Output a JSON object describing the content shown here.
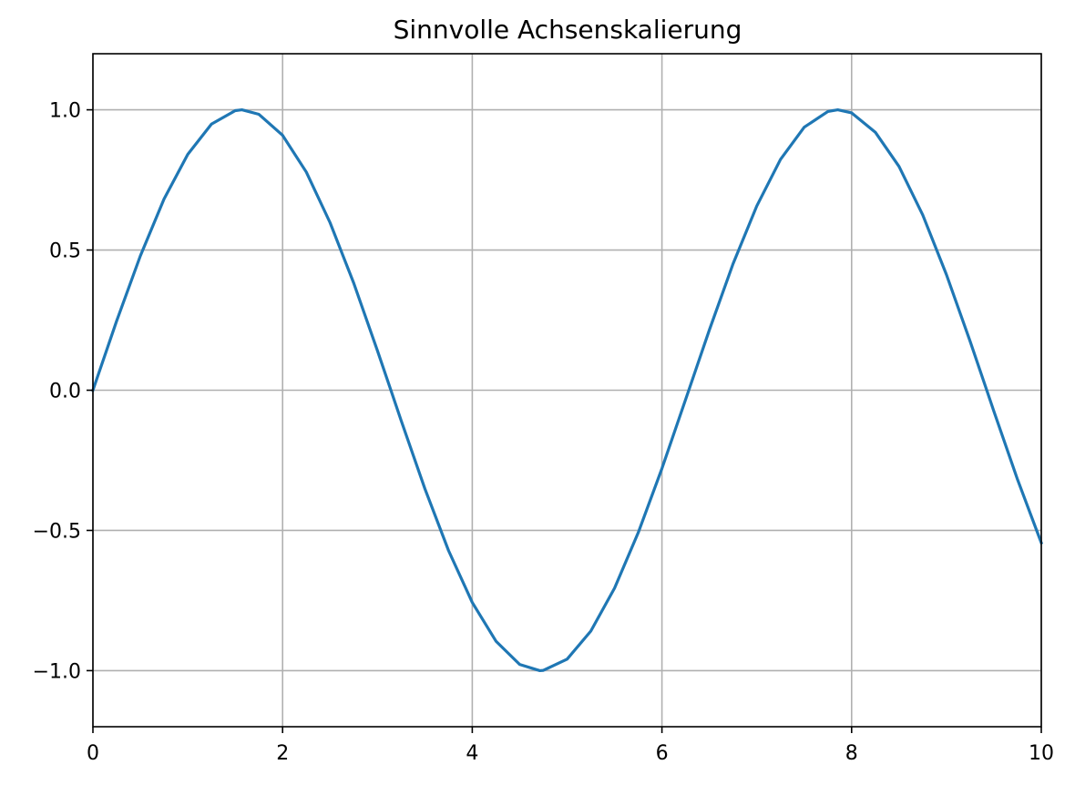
{
  "chart_data": {
    "type": "line",
    "title": "Sinnvolle Achsenskalierung",
    "xlabel": "",
    "ylabel": "",
    "xlim": [
      0,
      10
    ],
    "ylim": [
      -1.2,
      1.2
    ],
    "grid": true,
    "x_ticks": [
      0,
      2,
      4,
      6,
      8,
      10
    ],
    "x_tick_labels": [
      "0",
      "2",
      "4",
      "6",
      "8",
      "10"
    ],
    "y_ticks": [
      -1.0,
      -0.5,
      0.0,
      0.5,
      1.0
    ],
    "y_tick_labels": [
      "−1.0",
      "−0.5",
      "0.0",
      "0.5",
      "1.0"
    ],
    "series": [
      {
        "color": "#1f77b4",
        "x": [
          0,
          0.25,
          0.5,
          0.75,
          1,
          1.25,
          1.5,
          1.571,
          1.75,
          2,
          2.25,
          2.5,
          2.75,
          3,
          3.142,
          3.25,
          3.5,
          3.75,
          4,
          4.25,
          4.5,
          4.712,
          4.75,
          5,
          5.25,
          5.5,
          5.75,
          6,
          6.283,
          6.5,
          6.75,
          7,
          7.25,
          7.5,
          7.75,
          7.854,
          8,
          8.25,
          8.5,
          8.75,
          9,
          9.25,
          9.425,
          9.5,
          9.75,
          10
        ],
        "y": [
          0,
          0.247,
          0.479,
          0.682,
          0.841,
          0.949,
          0.997,
          1.0,
          0.984,
          0.909,
          0.778,
          0.598,
          0.382,
          0.141,
          0.0,
          -0.108,
          -0.351,
          -0.572,
          -0.757,
          -0.895,
          -0.978,
          -1.0,
          -0.999,
          -0.959,
          -0.859,
          -0.706,
          -0.508,
          -0.279,
          0.0,
          0.215,
          0.451,
          0.657,
          0.823,
          0.938,
          0.994,
          1.0,
          0.989,
          0.92,
          0.798,
          0.625,
          0.412,
          0.174,
          0.0,
          -0.075,
          -0.319,
          -0.544
        ]
      }
    ]
  }
}
